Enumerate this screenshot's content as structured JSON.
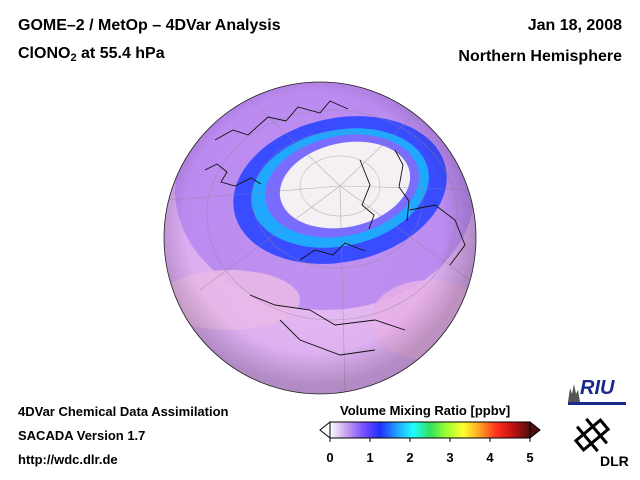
{
  "header": {
    "title_line1": "GOME–2 / MetOp – 4DVar Analysis",
    "species_main": "ClONO",
    "species_sub": "2",
    "species_rest": " at 55.4 hPa",
    "date": "Jan 18, 2008",
    "region": "Northern Hemisphere"
  },
  "footer": {
    "line1": "4DVar Chemical Data Assimilation",
    "line2": "SACADA Version 1.7",
    "line3": "http://wdc.dlr.de"
  },
  "colorbar": {
    "title": "Volume Mixing Ratio [ppbv]",
    "tick_labels": [
      "0",
      "1",
      "2",
      "3",
      "4",
      "5"
    ],
    "colors": [
      "#ffffff",
      "#c8a0f0",
      "#7a50ff",
      "#2030ff",
      "#20a0ff",
      "#20ffff",
      "#30e060",
      "#a0ff30",
      "#ffff30",
      "#ffa020",
      "#ff3020",
      "#c01010",
      "#501010"
    ]
  },
  "logos": {
    "riu": "RIU",
    "dlr": "DLR"
  }
}
